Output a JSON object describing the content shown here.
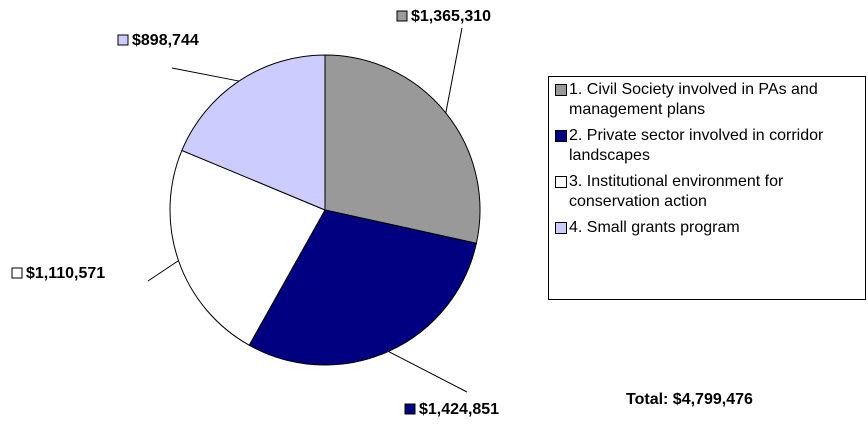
{
  "chart_data": {
    "type": "pie",
    "categories": [
      "1. Civil Society involved in PAs and management plans",
      "2. Private sector involved in corridor landscapes",
      "3. Institutional environment for conservation action",
      "4. Small grants program"
    ],
    "values": [
      1365310,
      1424851,
      1110571,
      898744
    ],
    "value_labels": [
      "$1,365,310",
      "$1,424,851",
      "$1,110,571",
      "$898,744"
    ],
    "colors": [
      "#999999",
      "#000080",
      "#ffffff",
      "#ccccff"
    ],
    "annotation": "Total: $4,799,476",
    "legend": "right"
  }
}
